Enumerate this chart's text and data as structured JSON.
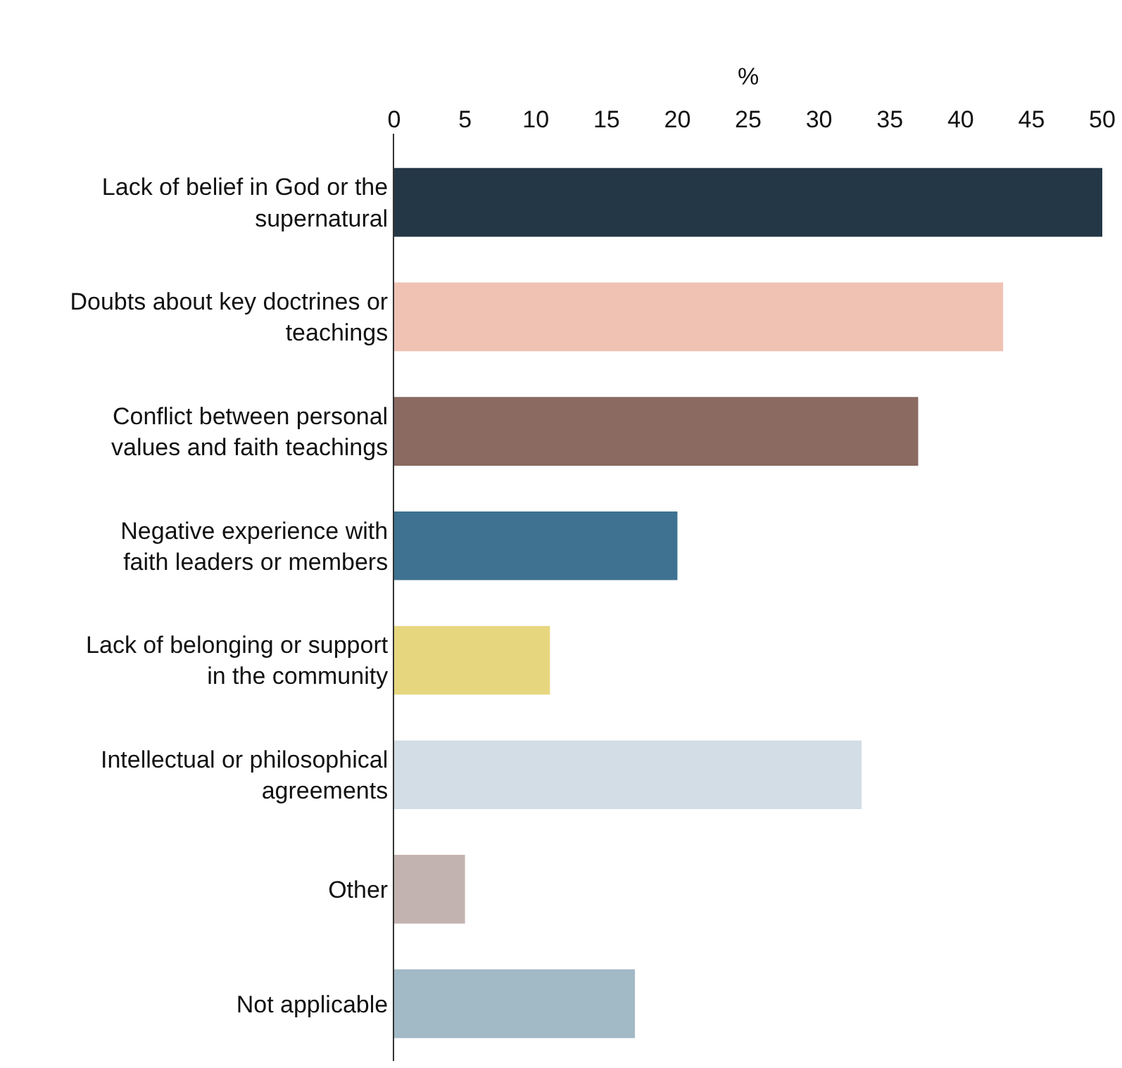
{
  "chart_data": {
    "type": "bar",
    "orientation": "horizontal",
    "xlabel": "%",
    "categories": [
      "Lack of belief in God or the supernatural",
      "Doubts about key doctrines or teachings",
      "Conflict between personal values and faith teachings",
      "Negative experience with faith leaders or members",
      "Lack of belonging or support in the community",
      "Intellectual or philosophical agreements",
      "Other",
      "Not applicable"
    ],
    "values": [
      50,
      43,
      37,
      20,
      11,
      33,
      5,
      17
    ],
    "colors": [
      "#243746",
      "#f0c2b4",
      "#8a6a61",
      "#3e7290",
      "#e6d77f",
      "#d2dde5",
      "#c3b3b0",
      "#a2b9c6"
    ],
    "xlim": [
      0,
      50
    ],
    "xticks": [
      0,
      5,
      10,
      15,
      20,
      25,
      30,
      35,
      40,
      45,
      50
    ],
    "grid": false
  }
}
